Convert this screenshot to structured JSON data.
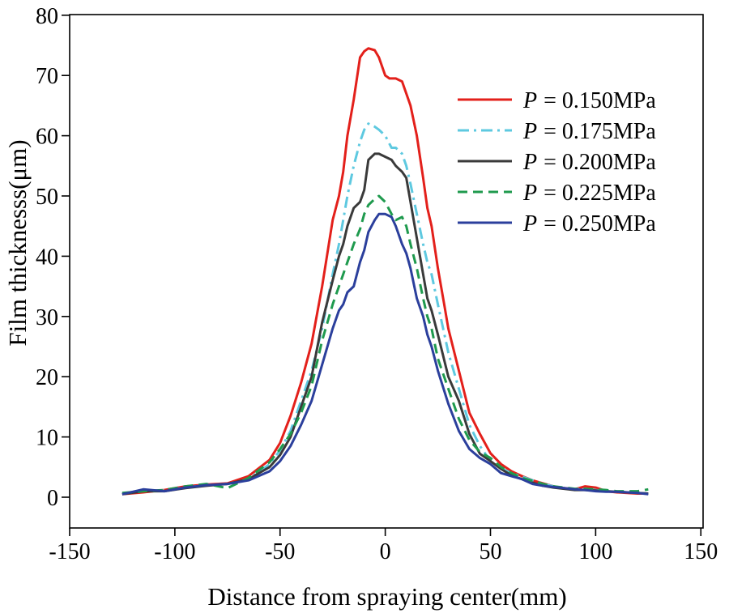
{
  "chart_data": {
    "type": "line",
    "title": "",
    "xlabel": "Distance from spraying center(mm)",
    "ylabel": "Film thicknesss(μm)",
    "xlim": [
      -150,
      150
    ],
    "ylim": [
      -5,
      80
    ],
    "xticks": [
      -150,
      -100,
      -50,
      0,
      50,
      100,
      150
    ],
    "yticks": [
      0,
      10,
      20,
      30,
      40,
      50,
      60,
      70,
      80
    ],
    "xtick_labels": [
      "-150",
      "-100",
      "-50",
      "0",
      "50",
      "100",
      "150"
    ],
    "ytick_labels": [
      "0",
      "10",
      "20",
      "30",
      "40",
      "50",
      "60",
      "70",
      "80"
    ],
    "grid": false,
    "legend_position": "top-right",
    "series": [
      {
        "name": "P = 0.150MPa",
        "symbol": "P",
        "label": "= 0.150MPa",
        "color": "#e3201b",
        "dash": "solid",
        "x": [
          -125,
          -115,
          -105,
          -95,
          -85,
          -75,
          -65,
          -55,
          -50,
          -45,
          -40,
          -35,
          -30,
          -25,
          -22,
          -20,
          -18,
          -15,
          -12,
          -10,
          -8,
          -5,
          -3,
          0,
          2,
          5,
          8,
          10,
          12,
          15,
          18,
          20,
          22,
          25,
          28,
          30,
          35,
          40,
          45,
          50,
          55,
          60,
          65,
          70,
          75,
          80,
          85,
          90,
          95,
          100,
          105,
          110,
          115,
          120,
          125
        ],
        "y": [
          0.5,
          0.8,
          1.2,
          1.8,
          2.1,
          2.3,
          3.5,
          6.2,
          9,
          13.5,
          19,
          25.5,
          35,
          46,
          50,
          54,
          60,
          66,
          73,
          74,
          74.5,
          74.2,
          73,
          70,
          69.5,
          69.5,
          69,
          67,
          65,
          60,
          53,
          48,
          45,
          38,
          32,
          28,
          21,
          14,
          10.5,
          7.3,
          5.5,
          4.3,
          3.5,
          2.8,
          2.3,
          1.8,
          1.5,
          1.3,
          1.8,
          1.6,
          1,
          0.8,
          0.7,
          0.6,
          0.6
        ]
      },
      {
        "name": "P = 0.175MPa",
        "symbol": "P",
        "label": "= 0.175MPa",
        "color": "#5ec9e0",
        "dash": "dashdot",
        "x": [
          -125,
          -115,
          -105,
          -95,
          -85,
          -75,
          -65,
          -55,
          -50,
          -45,
          -40,
          -35,
          -30,
          -25,
          -22,
          -20,
          -18,
          -15,
          -12,
          -10,
          -8,
          -5,
          -3,
          0,
          3,
          5,
          8,
          10,
          12,
          15,
          18,
          20,
          22,
          25,
          30,
          35,
          40,
          45,
          50,
          55,
          60,
          65,
          70,
          75,
          80,
          85,
          90,
          95,
          100,
          105,
          110,
          115,
          120,
          125
        ],
        "y": [
          0.6,
          1,
          1.1,
          1.6,
          2,
          2.2,
          3,
          5.5,
          7.8,
          11,
          16,
          21,
          28,
          37,
          42,
          46,
          50,
          55,
          59,
          61,
          62,
          61.5,
          61,
          60,
          58,
          58,
          57,
          55,
          52,
          47,
          42,
          39,
          37,
          32,
          24,
          18,
          12,
          8.5,
          6,
          4.8,
          4,
          3.4,
          2.8,
          2.2,
          1.8,
          1.5,
          1.3,
          1.4,
          1.2,
          1,
          0.9,
          0.8,
          0.7,
          0.6
        ]
      },
      {
        "name": "P = 0.200MPa",
        "symbol": "P",
        "label": "= 0.200MPa",
        "color": "#3a3a3a",
        "dash": "solid",
        "x": [
          -125,
          -115,
          -105,
          -95,
          -85,
          -75,
          -65,
          -55,
          -50,
          -45,
          -40,
          -35,
          -30,
          -25,
          -22,
          -20,
          -18,
          -15,
          -12,
          -10,
          -8,
          -5,
          -3,
          0,
          3,
          5,
          8,
          10,
          12,
          15,
          18,
          20,
          22,
          25,
          30,
          35,
          40,
          45,
          50,
          55,
          60,
          65,
          70,
          75,
          80,
          85,
          90,
          95,
          100,
          105,
          110,
          115,
          120,
          125
        ],
        "y": [
          0.5,
          1,
          1,
          1.5,
          1.9,
          2.2,
          3,
          5,
          7,
          10,
          15,
          20,
          29,
          36,
          40,
          42,
          45,
          48,
          49,
          51,
          56,
          57,
          57,
          56.5,
          56,
          55,
          54,
          53,
          49,
          43,
          37,
          33,
          31,
          27,
          20,
          16,
          10.5,
          7.2,
          6,
          4.7,
          3.6,
          3,
          2.4,
          1.9,
          1.6,
          1.4,
          1.2,
          1.2,
          1.1,
          1,
          0.9,
          0.8,
          0.7,
          0.6
        ]
      },
      {
        "name": "P = 0.225MPa",
        "symbol": "P",
        "label": "= 0.225MPa",
        "color": "#1f9a4e",
        "dash": "dashed",
        "x": [
          -125,
          -115,
          -105,
          -95,
          -85,
          -75,
          -65,
          -55,
          -50,
          -45,
          -40,
          -35,
          -30,
          -25,
          -22,
          -20,
          -18,
          -15,
          -12,
          -10,
          -8,
          -5,
          -3,
          0,
          3,
          5,
          8,
          10,
          12,
          15,
          18,
          20,
          22,
          25,
          30,
          35,
          40,
          45,
          50,
          55,
          60,
          65,
          70,
          75,
          80,
          85,
          90,
          95,
          100,
          105,
          110,
          115,
          120,
          125
        ],
        "y": [
          0.7,
          1,
          1.2,
          1.8,
          2.2,
          1.5,
          3.2,
          5.8,
          8,
          10.5,
          14,
          18.5,
          26,
          32,
          35,
          37,
          39,
          42,
          44.5,
          47,
          48.5,
          49.5,
          50,
          49,
          47,
          46,
          46.5,
          45,
          42,
          38,
          33,
          30,
          28,
          23,
          18,
          13,
          9.5,
          7.5,
          6.5,
          5,
          4,
          3.2,
          2.7,
          2.2,
          1.8,
          1.6,
          1.4,
          1.4,
          1.3,
          1.2,
          1,
          1,
          1,
          1.3
        ]
      },
      {
        "name": "P = 0.250MPa",
        "symbol": "P",
        "label": "= 0.250MPa",
        "color": "#2b3f9c",
        "dash": "solid",
        "x": [
          -125,
          -115,
          -105,
          -95,
          -85,
          -75,
          -65,
          -55,
          -50,
          -45,
          -40,
          -35,
          -30,
          -25,
          -22,
          -20,
          -18,
          -15,
          -12,
          -10,
          -8,
          -5,
          -3,
          0,
          3,
          5,
          8,
          10,
          12,
          15,
          18,
          20,
          22,
          25,
          30,
          35,
          40,
          45,
          50,
          55,
          60,
          65,
          70,
          75,
          80,
          85,
          90,
          95,
          100,
          105,
          110,
          115,
          120,
          125
        ],
        "y": [
          0.5,
          1.3,
          1,
          1.6,
          2,
          2.2,
          2.8,
          4.3,
          6,
          8.5,
          12,
          16,
          22,
          28,
          31,
          32,
          34,
          35,
          39,
          41,
          44,
          46,
          47,
          47,
          46.5,
          45,
          42,
          40.5,
          38,
          33,
          30,
          27,
          25,
          21,
          15.5,
          11,
          8,
          6.5,
          5.5,
          4,
          3.5,
          3,
          2.2,
          1.9,
          1.7,
          1.5,
          1.3,
          1.2,
          1,
          0.9,
          0.9,
          0.8,
          0.7,
          0.5
        ]
      }
    ]
  }
}
